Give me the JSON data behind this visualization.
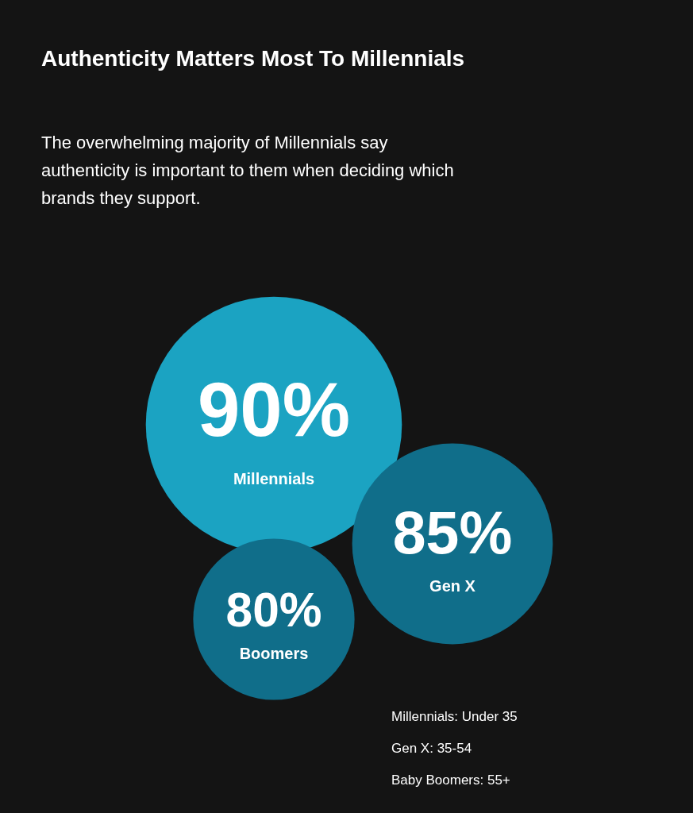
{
  "chart_data": {
    "type": "other",
    "title": "Authenticity Matters Most To Millennials",
    "subtitle": "The overwhelming majority of Millennials say authenticity is important to them when deciding which brands they support.",
    "categories": [
      "Millennials",
      "Gen X",
      "Boomers"
    ],
    "values": [
      90,
      85,
      80
    ],
    "value_labels": [
      "90%",
      "85%",
      "80%"
    ],
    "colors": [
      "#1ba3c2",
      "#106e8a",
      "#106e8a"
    ],
    "annotations": [
      "Millennials: Under 35",
      "Gen X: 35-54",
      "Baby Boomers: 55+"
    ]
  }
}
